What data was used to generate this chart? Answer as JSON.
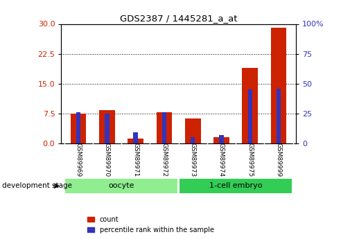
{
  "title": "GDS2387 / 1445281_a_at",
  "samples": [
    "GSM89969",
    "GSM89970",
    "GSM89971",
    "GSM89972",
    "GSM89973",
    "GSM89974",
    "GSM89975",
    "GSM89999"
  ],
  "count_values": [
    7.5,
    8.3,
    1.2,
    7.8,
    6.2,
    1.5,
    19.0,
    29.0
  ],
  "percentile_values": [
    26,
    25,
    9,
    26,
    5,
    7,
    45,
    46
  ],
  "groups": [
    {
      "label": "oocyte",
      "start": 0,
      "end": 4,
      "color": "#90EE90"
    },
    {
      "label": "1-cell embryo",
      "start": 4,
      "end": 8,
      "color": "#33CC55"
    }
  ],
  "left_ylim": [
    0,
    30
  ],
  "left_yticks": [
    0,
    7.5,
    15,
    22.5,
    30
  ],
  "right_ylim": [
    0,
    100
  ],
  "right_yticks": [
    0,
    25,
    50,
    75,
    100
  ],
  "grid_values": [
    7.5,
    15,
    22.5
  ],
  "count_color": "#CC2200",
  "percentile_color": "#3333BB",
  "ylabel_left_color": "#CC2200",
  "ylabel_right_color": "#3333BB",
  "background_color": "#FFFFFF",
  "xlabel_area_color": "#C8C8C8",
  "development_label": "development stage",
  "legend_count": "count",
  "legend_percentile": "percentile rank within the sample"
}
